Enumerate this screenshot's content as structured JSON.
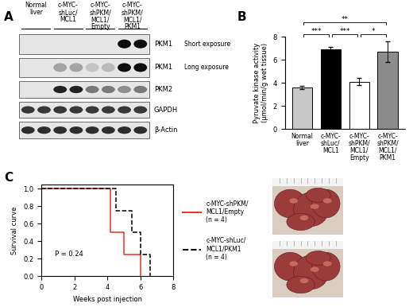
{
  "panel_labels": [
    "A",
    "B",
    "C"
  ],
  "blot": {
    "lanes_per_group": 2,
    "groups": [
      "Normal\nliver",
      "c-MYC-\nshLuc/\nMCL1",
      "c-MYC-\nshPKM/\nMCL1/\nEmpty",
      "c-MYC-\nshPKM/\nMCL1/\nPKM1"
    ],
    "rows": [
      {
        "label": "PKM1",
        "note": "Short exposure",
        "intensity": [
          0,
          0,
          0,
          0,
          0,
          0,
          1,
          1
        ]
      },
      {
        "label": "PKM1",
        "note": "Long exposure",
        "intensity": [
          0,
          0,
          0.3,
          0.3,
          0.15,
          0.2,
          1,
          1
        ]
      },
      {
        "label": "PKM2",
        "intensity": [
          0,
          0,
          0.9,
          0.9,
          0.5,
          0.5,
          0.4,
          0.5
        ]
      },
      {
        "label": "GAPDH",
        "intensity": [
          0.8,
          0.8,
          0.8,
          0.8,
          0.8,
          0.8,
          0.8,
          0.8
        ]
      },
      {
        "label": "β-Actin",
        "intensity": [
          0.85,
          0.85,
          0.85,
          0.85,
          0.85,
          0.85,
          0.85,
          0.85
        ]
      }
    ]
  },
  "chart_data": [
    {
      "type": "bar",
      "categories": [
        "Normal\nliver",
        "c-MYC-\nshLuc/\nMCL1",
        "c-MYC-\nshPKM/\nMCL1/\nEmpty",
        "c-MYC-\nshPKM/\nMCL1/\nPKM1"
      ],
      "values": [
        3.6,
        6.9,
        4.1,
        6.7
      ],
      "errors": [
        0.15,
        0.2,
        0.3,
        0.9
      ],
      "colors": [
        "#c8c8c8",
        "#000000",
        "#ffffff",
        "#8c8c8c"
      ],
      "y_label": "Pyruvate kinase activity\n(μmol/min/g wet tissue)",
      "ylim": [
        0,
        8
      ],
      "yticks": [
        0,
        2,
        4,
        6,
        8
      ],
      "annotations": [
        {
          "between": [
            "Normal\nliver",
            "c-MYC-\nshLuc/\nMCL1"
          ],
          "label": "***"
        },
        {
          "between": [
            "c-MYC-\nshLuc/\nMCL1",
            "c-MYC-\nshPKM/\nMCL1/\nEmpty"
          ],
          "label": "***"
        },
        {
          "between": [
            "c-MYC-\nshPKM/\nMCL1/\nEmpty",
            "c-MYC-\nshPKM/\nMCL1/\nPKM1"
          ],
          "label": "*"
        },
        {
          "between": [
            "Normal\nliver",
            "c-MYC-\nshPKM/\nMCL1/\nPKM1"
          ],
          "label": "**"
        }
      ]
    },
    {
      "type": "step",
      "x_label": "Weeks post injection",
      "y_label": "Survival curve",
      "xlim": [
        0,
        8
      ],
      "xticks": [
        0,
        2,
        4,
        6,
        8
      ],
      "ylim": [
        0,
        1.05
      ],
      "yticks": [
        {
          "value": 0,
          "label": "0.0"
        },
        0.2,
        0.4,
        0.6,
        0.8,
        {
          "value": 1,
          "label": "1.0"
        }
      ],
      "annotations": [
        {
          "text": "P = 0.24",
          "x": 0.8,
          "y": 0.25
        }
      ],
      "legend": "right",
      "series": [
        {
          "name": "c-MYC-shPKM/\nMCL1/Empty\n(n = 4)",
          "color": "#e8321e",
          "line_style": "solid",
          "x": [
            0,
            4.2,
            5.0,
            6.0
          ],
          "values": [
            1.0,
            0.5,
            0.25,
            0.0
          ]
        },
        {
          "name": "c-MYC-shLuc/\nMCL1/PKM1\n(n = 4)",
          "color": "#000000",
          "line_style": "dashed",
          "x": [
            0,
            4.5,
            5.5,
            6.0,
            6.6
          ],
          "values": [
            1.0,
            0.75,
            0.5,
            0.25,
            0.0
          ]
        }
      ]
    }
  ]
}
